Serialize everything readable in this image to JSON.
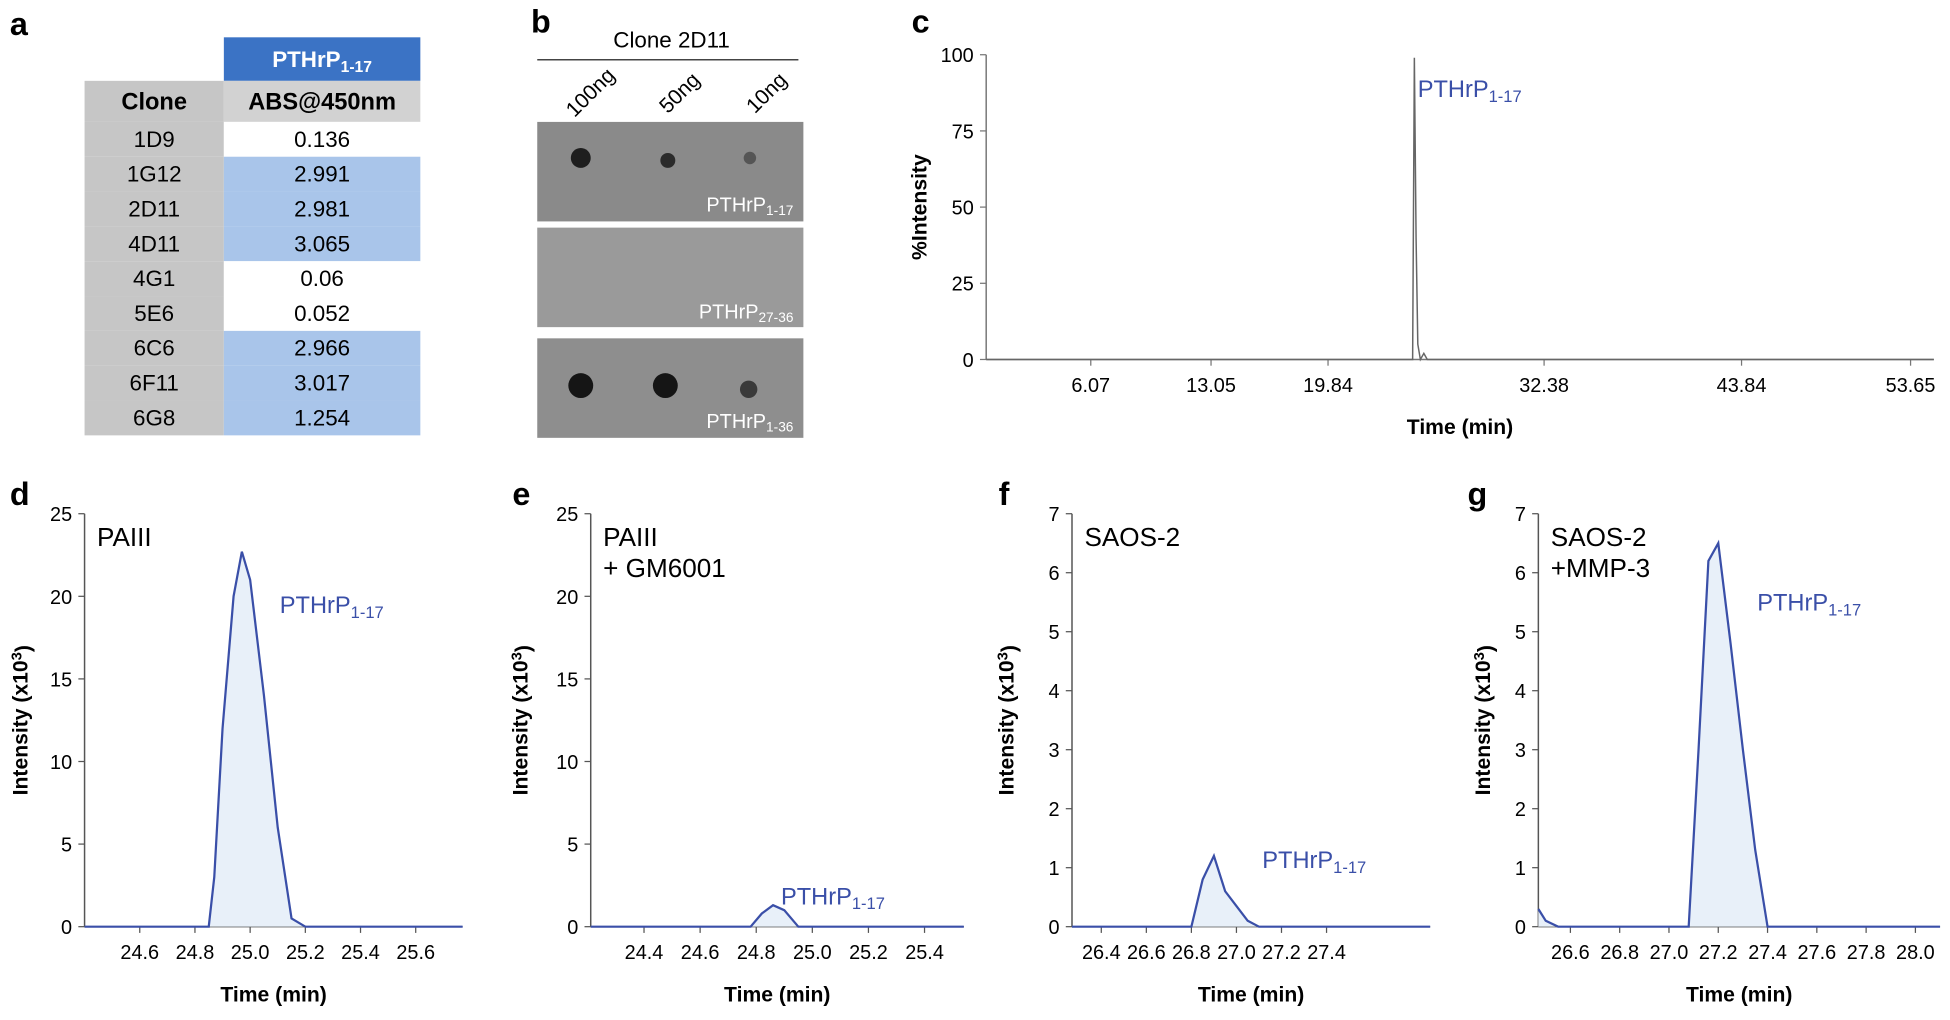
{
  "panel_labels": [
    "a",
    "b",
    "c",
    "d",
    "e",
    "f",
    "g"
  ],
  "table": {
    "header_group": [
      "PTHrP",
      "1-17"
    ],
    "header_color": "#3b73c5",
    "columns": [
      "Clone",
      "ABS@450nm"
    ],
    "rows": [
      {
        "clone": "1D9",
        "abs": 0.136,
        "fill": "#ffffff"
      },
      {
        "clone": "1G12",
        "abs": 2.991,
        "fill": "#a9c5ea"
      },
      {
        "clone": "2D11",
        "abs": 2.981,
        "fill": "#a9c5ea"
      },
      {
        "clone": "4D11",
        "abs": 3.065,
        "fill": "#a9c5ea"
      },
      {
        "clone": "4G1",
        "abs": 0.06,
        "fill": "#ffffff"
      },
      {
        "clone": "5E6",
        "abs": 0.052,
        "fill": "#ffffff"
      },
      {
        "clone": "6C6",
        "abs": 2.966,
        "fill": "#a9c5ea"
      },
      {
        "clone": "6F11",
        "abs": 3.017,
        "fill": "#a9c5ea"
      },
      {
        "clone": "6G8",
        "abs": 1.254,
        "fill": "#a9c5ea"
      }
    ]
  },
  "blot": {
    "title": "Clone 2D11",
    "amounts": [
      "100ng",
      "50ng",
      "10ng"
    ],
    "panels": [
      [
        "PTHrP",
        "1-17"
      ],
      [
        "PTHrP",
        "27-36"
      ],
      [
        "PTHrP",
        "1-36"
      ]
    ]
  },
  "chart_data": [
    {
      "type": "line",
      "x_label": "Time (min)",
      "y_label": [
        "%Intensity"
      ],
      "xlim": [
        0,
        55
      ],
      "ylim": [
        0,
        100
      ],
      "xticks": [
        6.07,
        13.05,
        19.84,
        32.38,
        43.84,
        53.65
      ],
      "yticks": [
        0,
        25,
        50,
        75,
        100
      ],
      "color": "#666666",
      "fill": null,
      "annotation": [
        "PTHrP",
        "1-17"
      ],
      "annotation_color": "#3a4fa8",
      "sample_label": [],
      "x": [
        0,
        24.6,
        24.75,
        24.85,
        24.95,
        25.05,
        25.2,
        25.4,
        25.6,
        55
      ],
      "values": [
        0,
        0,
        0,
        99,
        40,
        5,
        0,
        2,
        0,
        0
      ]
    },
    {
      "type": "line",
      "x_label": "Time (min)",
      "y_label": [
        "Intensity (x10",
        "3",
        ")"
      ],
      "xlim": [
        24.4,
        25.77
      ],
      "ylim": [
        0,
        25
      ],
      "xticks": [
        24.6,
        24.8,
        {
          "value": 25,
          "label": "25.0"
        },
        25.2,
        25.4,
        25.6
      ],
      "yticks": [
        0,
        5,
        10,
        15,
        20,
        25
      ],
      "color": "#3a4fa8",
      "fill": "#e8f0f9",
      "annotation": [
        "PTHrP",
        "1-17"
      ],
      "annotation_color": "#3a4fa8",
      "sample_label": [
        "PAIII"
      ],
      "x": [
        24.4,
        24.85,
        24.87,
        24.9,
        24.94,
        24.97,
        25.0,
        25.05,
        25.1,
        25.15,
        25.2,
        25.77
      ],
      "values": [
        0,
        0,
        3,
        12,
        20,
        22.7,
        21,
        14,
        6,
        0.5,
        0,
        0
      ]
    },
    {
      "type": "line",
      "x_label": "Time (min)",
      "y_label": [
        "Intensity (x10",
        "3",
        ")"
      ],
      "xlim": [
        24.21,
        25.54
      ],
      "ylim": [
        0,
        25
      ],
      "xticks": [
        24.4,
        24.6,
        24.8,
        {
          "value": 25,
          "label": "25.0"
        },
        25.2,
        25.4
      ],
      "yticks": [
        0,
        5,
        10,
        15,
        20,
        25
      ],
      "color": "#3a4fa8",
      "fill": "#e8f0f9",
      "annotation": [
        "PTHrP",
        "1-17"
      ],
      "annotation_color": "#3a4fa8",
      "sample_label": [
        "PAIII",
        "+ GM6001"
      ],
      "x": [
        24.21,
        24.78,
        24.82,
        24.86,
        24.9,
        24.95,
        25.54
      ],
      "values": [
        0,
        0,
        0.8,
        1.3,
        1.0,
        0,
        0
      ]
    },
    {
      "type": "line",
      "x_label": "Time (min)",
      "y_label": [
        "Intensity (x10",
        "3",
        ")"
      ],
      "xlim": [
        26.27,
        27.86
      ],
      "ylim": [
        0,
        7
      ],
      "xticks": [
        26.4,
        26.6,
        26.8,
        {
          "value": 27,
          "label": "27.0"
        },
        27.2,
        27.4
      ],
      "yticks": [
        0,
        1,
        2,
        3,
        4,
        5,
        6,
        7
      ],
      "color": "#3a4fa8",
      "fill": "#e8f0f9",
      "annotation": [
        "PTHrP",
        "1-17"
      ],
      "annotation_color": "#3a4fa8",
      "sample_label": [
        "SAOS-2"
      ],
      "x": [
        26.27,
        26.8,
        26.85,
        26.9,
        26.95,
        27.0,
        27.05,
        27.1,
        27.86
      ],
      "values": [
        0,
        0,
        0.8,
        1.2,
        0.6,
        0.35,
        0.1,
        0,
        0
      ]
    },
    {
      "type": "line",
      "x_label": "Time (min)",
      "y_label": [
        "Intensity (x10",
        "3",
        ")"
      ],
      "xlim": [
        26.47,
        28.1
      ],
      "ylim": [
        0,
        7
      ],
      "xticks": [
        26.6,
        26.8,
        {
          "value": 27,
          "label": "27.0"
        },
        27.2,
        27.4,
        27.6,
        27.8,
        {
          "value": 28,
          "label": "28.0"
        }
      ],
      "yticks": [
        0,
        1,
        2,
        3,
        4,
        5,
        6,
        7
      ],
      "color": "#3a4fa8",
      "fill": "#e8f0f9",
      "annotation": [
        "PTHrP",
        "1-17"
      ],
      "annotation_color": "#3a4fa8",
      "sample_label": [
        "SAOS-2",
        "+MMP-3"
      ],
      "x": [
        26.47,
        26.5,
        26.55,
        27.08,
        27.12,
        27.16,
        27.2,
        27.25,
        27.3,
        27.35,
        27.4,
        28.1
      ],
      "values": [
        0.3,
        0.1,
        0,
        0,
        3,
        6.2,
        6.5,
        4.8,
        3,
        1.3,
        0,
        0
      ]
    }
  ]
}
